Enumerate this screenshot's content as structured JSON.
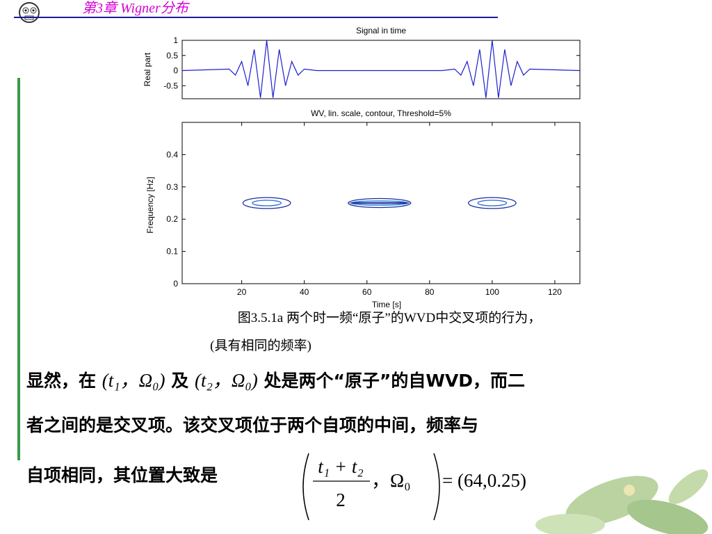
{
  "header": {
    "title": "第3章  Wigner分布"
  },
  "chart_data": [
    {
      "type": "line",
      "title": "Signal in time",
      "y_label": "Real part",
      "x": [
        1,
        16,
        18,
        20,
        22,
        24,
        26,
        28,
        30,
        32,
        34,
        36,
        38,
        40,
        44,
        84,
        88,
        90,
        92,
        94,
        96,
        98,
        100,
        102,
        104,
        106,
        108,
        110,
        112,
        128
      ],
      "series": [
        {
          "color": "#1f1fd0",
          "values": [
            0,
            0.05,
            -0.15,
            0.3,
            -0.5,
            0.7,
            -0.9,
            1,
            -0.9,
            0.7,
            -0.5,
            0.3,
            -0.15,
            0.05,
            0,
            0,
            0.05,
            -0.15,
            0.3,
            -0.5,
            0.7,
            -0.9,
            1,
            -0.9,
            0.7,
            -0.5,
            0.3,
            -0.15,
            0.05,
            0
          ]
        }
      ],
      "xlim": [
        1,
        128
      ],
      "ylim": [
        -0.93,
        1
      ],
      "yticks": [
        1,
        0.5,
        0,
        -0.5
      ]
    },
    {
      "type": "contour",
      "title": "WV, lin. scale, contour, Threshold=5%",
      "x_label": "Time [s]",
      "y_label": "Frequency [Hz]",
      "contours": [
        {
          "x": 28,
          "y": 0.25,
          "rx": 7.6,
          "ry": 0.017,
          "color": "#1c2f9c"
        },
        {
          "x": 28,
          "y": 0.25,
          "rx": 4.6,
          "ry": 0.0086,
          "color": "#2a6ad8"
        },
        {
          "x": 64,
          "y": 0.25,
          "rx": 10,
          "ry": 0.014,
          "color": "#1c2f9c"
        },
        {
          "x": 64,
          "y": 0.25,
          "rx": 9,
          "ry": 0.007,
          "color": "#2a8ae0"
        },
        {
          "x": 64,
          "y": 0.25,
          "rx": 9.5,
          "ry": 0.002,
          "color": "#1c2f9c"
        },
        {
          "x": 100,
          "y": 0.25,
          "rx": 7.6,
          "ry": 0.017,
          "color": "#1c2f9c"
        },
        {
          "x": 100,
          "y": 0.25,
          "rx": 4.6,
          "ry": 0.0086,
          "color": "#2a6ad8"
        }
      ],
      "xlim": [
        1,
        128
      ],
      "ylim": [
        0,
        0.5
      ],
      "xticks": [
        20,
        40,
        60,
        80,
        100,
        120
      ],
      "yticks": [
        0,
        0.1,
        0.2,
        0.3,
        0.4
      ]
    }
  ],
  "caption": {
    "line1": "图3.5.1a 两个时一频“原子”的WVD中交叉项的行为，",
    "line2": "(具有相同的频率)"
  },
  "body": {
    "line1": [
      "显然，在",
      "(t₁，Ω₀)",
      "及",
      "(t₂，Ω₀)",
      "处是两个“原子”的自WVD，而二"
    ],
    "line2": "者之间的是交叉项。该交叉项位于两个自项的中间，频率与",
    "line3": {
      "text": "自项相同，其位置大致是",
      "numerator": "t₁ + t₂",
      "denominator": "2",
      "omega": "，Ω₀",
      "result": "= (64,0.25)"
    }
  }
}
